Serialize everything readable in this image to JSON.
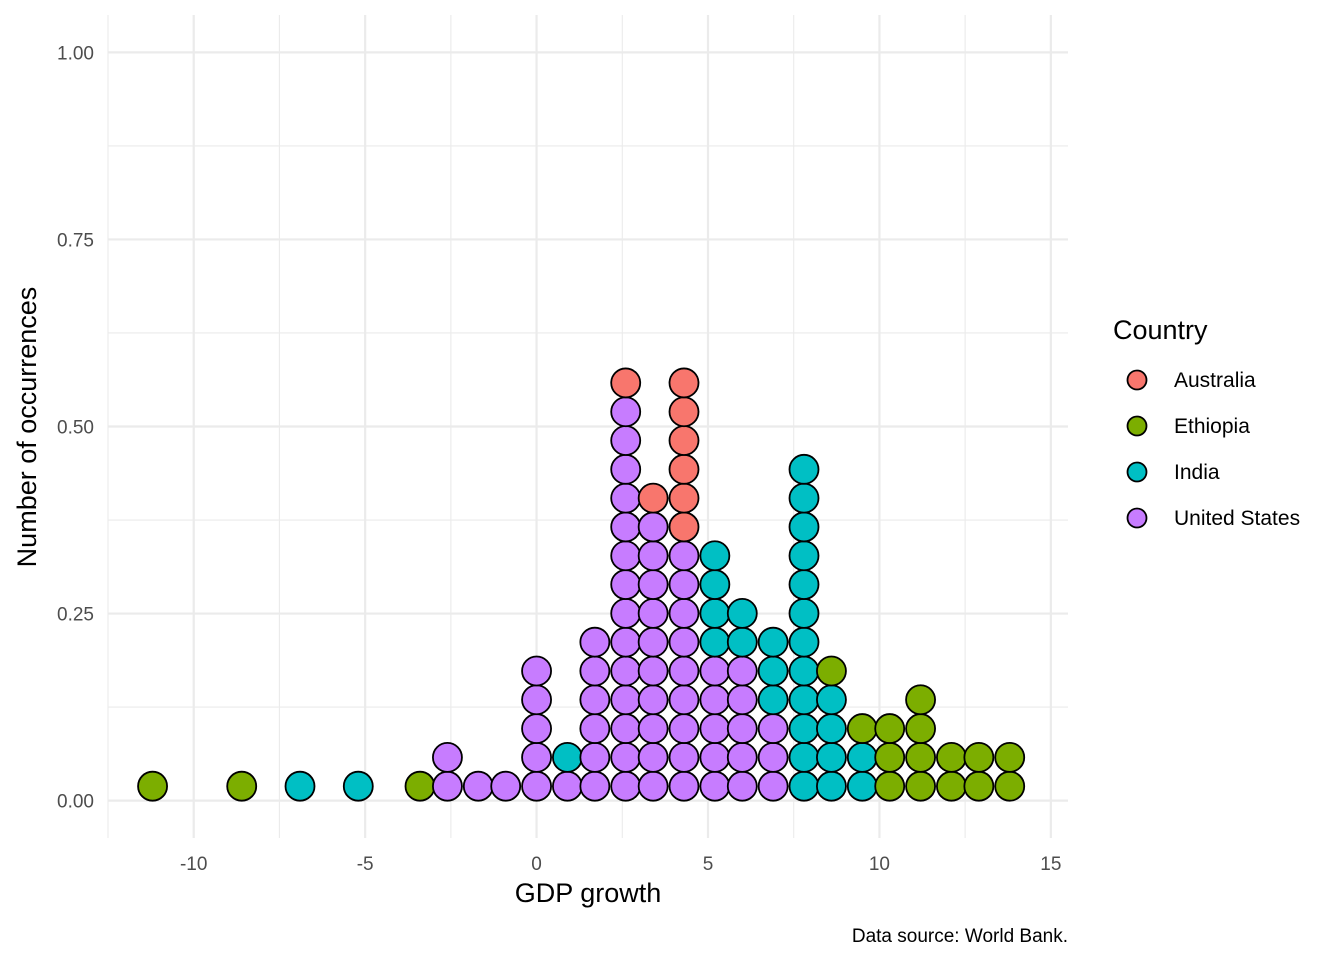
{
  "chart_data": {
    "type": "dotplot",
    "xlabel": "GDP growth",
    "ylabel": "Number of occurrences",
    "caption": "Data source: World Bank.",
    "xlim": [
      -12.5,
      15.5
    ],
    "ylim": [
      -0.05,
      1.05
    ],
    "x_ticks": [
      -10,
      -5,
      0,
      5,
      10,
      15
    ],
    "x_tick_labels": [
      "-10",
      "-5",
      "0",
      "5",
      "10",
      "15"
    ],
    "y_ticks": [
      0,
      0.25,
      0.5,
      0.75,
      1
    ],
    "y_tick_labels": [
      "0.00",
      "0.25",
      "0.50",
      "0.75",
      "1.00"
    ],
    "grid": true,
    "legend": {
      "title": "Country",
      "position": "right",
      "entries": [
        {
          "name": "Australia",
          "color": "#F8766D"
        },
        {
          "name": "Ethiopia",
          "color": "#7CAE00"
        },
        {
          "name": "India",
          "color": "#00BFC4"
        },
        {
          "name": "United States",
          "color": "#C77CFF"
        }
      ]
    },
    "stack_unit": 0.0385,
    "bins": [
      {
        "x": -11.2,
        "counts": {
          "Ethiopia": 1
        }
      },
      {
        "x": -8.6,
        "counts": {
          "Ethiopia": 1
        }
      },
      {
        "x": -6.9,
        "counts": {
          "India": 1
        }
      },
      {
        "x": -5.2,
        "counts": {
          "India": 1
        }
      },
      {
        "x": -3.4,
        "counts": {
          "Ethiopia": 1
        }
      },
      {
        "x": -2.6,
        "counts": {
          "United States": 2
        }
      },
      {
        "x": -1.7,
        "counts": {
          "United States": 1
        }
      },
      {
        "x": -0.9,
        "counts": {
          "United States": 1
        }
      },
      {
        "x": 0.0,
        "counts": {
          "United States": 5
        }
      },
      {
        "x": 0.9,
        "counts": {
          "India": 1,
          "United States": 1
        }
      },
      {
        "x": 1.7,
        "counts": {
          "United States": 6
        }
      },
      {
        "x": 2.6,
        "counts": {
          "Australia": 1,
          "United States": 14
        }
      },
      {
        "x": 3.4,
        "counts": {
          "Australia": 1,
          "United States": 10
        }
      },
      {
        "x": 4.3,
        "counts": {
          "Australia": 6,
          "United States": 9
        }
      },
      {
        "x": 5.2,
        "counts": {
          "India": 4,
          "United States": 5
        }
      },
      {
        "x": 6.0,
        "counts": {
          "India": 2,
          "United States": 5
        }
      },
      {
        "x": 6.9,
        "counts": {
          "India": 3,
          "United States": 3
        }
      },
      {
        "x": 7.8,
        "counts": {
          "India": 12
        }
      },
      {
        "x": 8.6,
        "counts": {
          "Ethiopia": 1,
          "India": 4
        }
      },
      {
        "x": 9.5,
        "counts": {
          "Ethiopia": 1,
          "India": 2
        }
      },
      {
        "x": 10.3,
        "counts": {
          "Ethiopia": 3
        }
      },
      {
        "x": 11.2,
        "counts": {
          "Ethiopia": 4
        }
      },
      {
        "x": 12.1,
        "counts": {
          "Ethiopia": 2
        }
      },
      {
        "x": 12.9,
        "counts": {
          "Ethiopia": 2
        }
      },
      {
        "x": 13.8,
        "counts": {
          "Ethiopia": 2
        }
      }
    ]
  }
}
